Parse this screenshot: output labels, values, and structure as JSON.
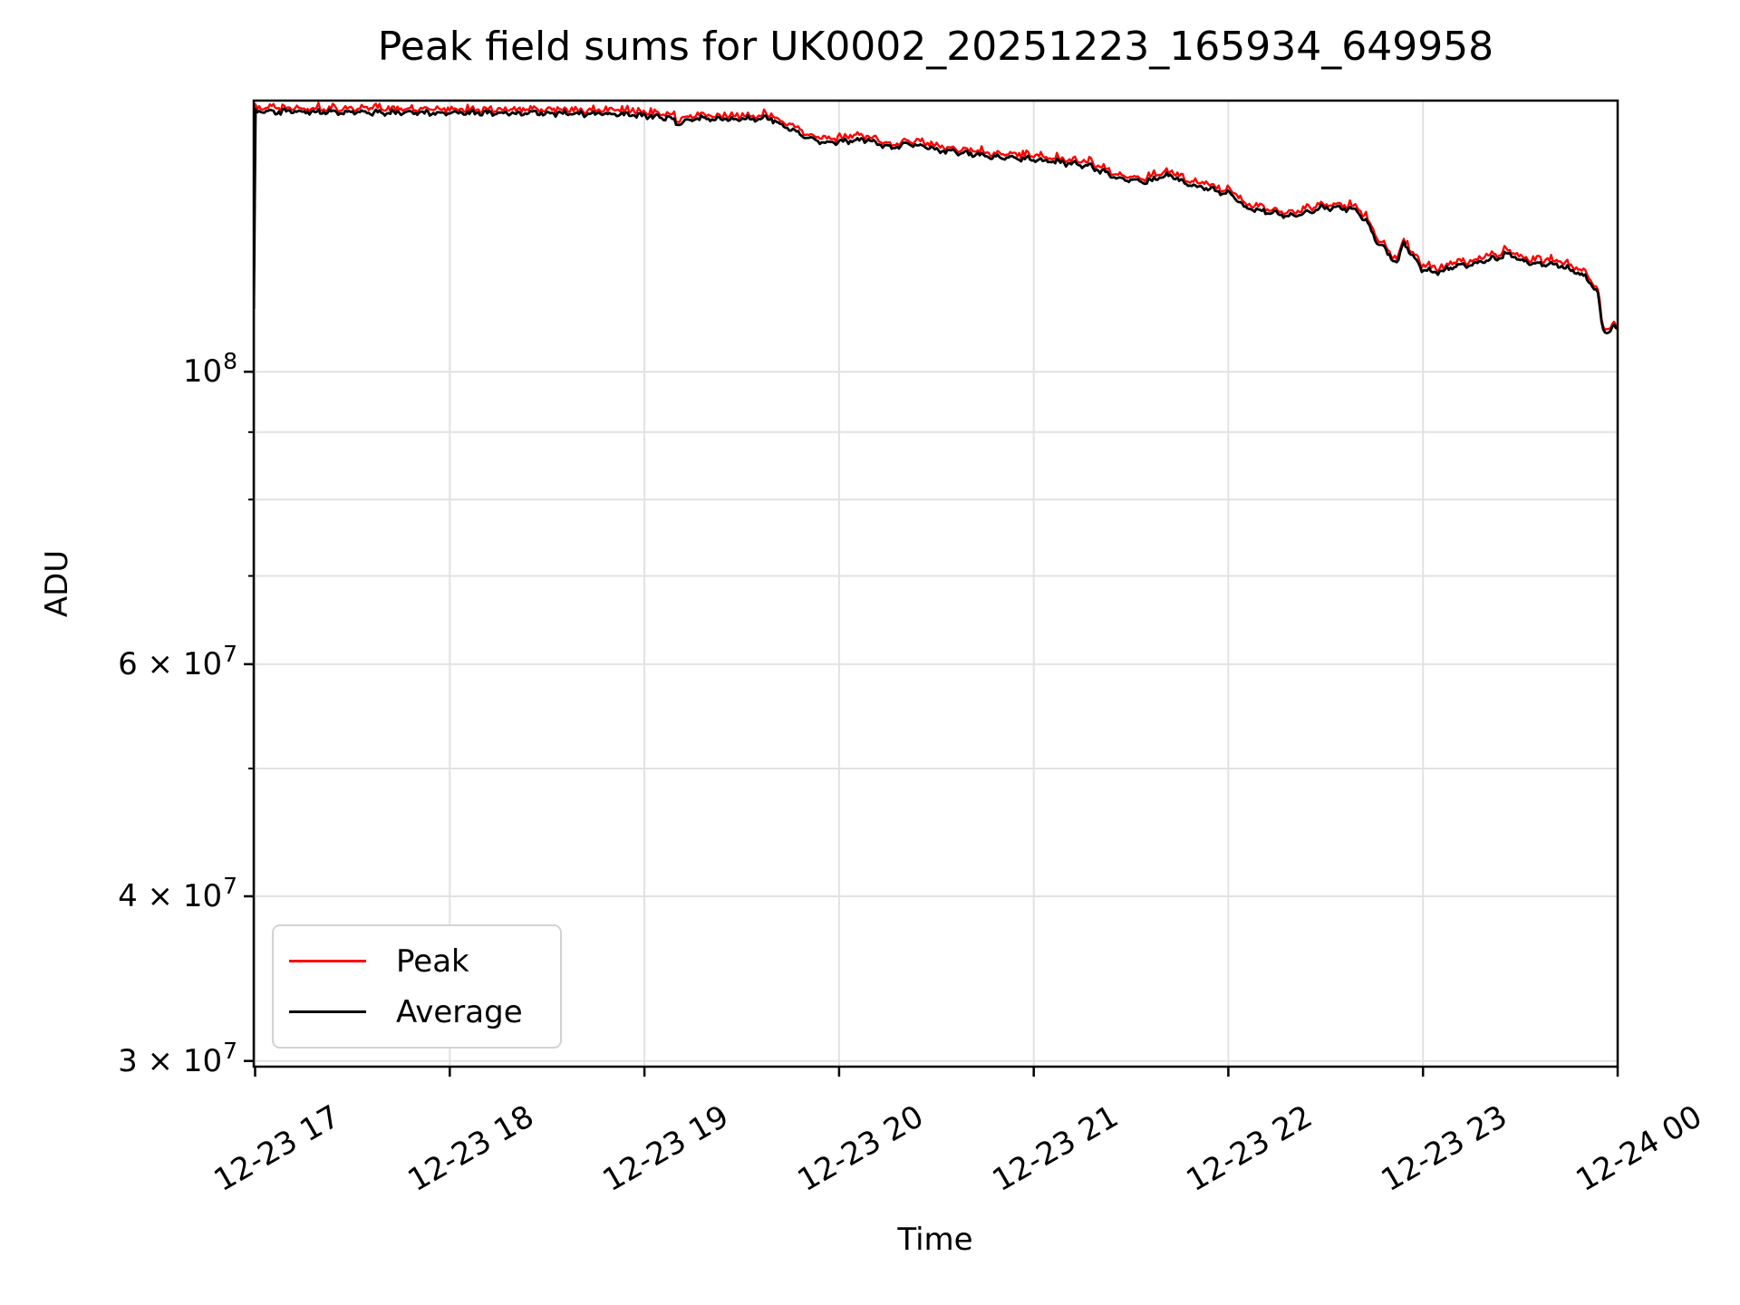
{
  "chart_data": {
    "type": "line",
    "title": "Peak field sums for UK0002_20251223_165934_649958",
    "xlabel": "Time",
    "ylabel": "ADU",
    "yscale": "log",
    "grid": true,
    "legend_position": "lower left",
    "xlim_hours": [
      16.9928,
      24.0
    ],
    "ylim": [
      29700000,
      160600000
    ],
    "x_ticks": [
      {
        "hour": 17,
        "label": "12-23 17"
      },
      {
        "hour": 18,
        "label": "12-23 18"
      },
      {
        "hour": 19,
        "label": "12-23 19"
      },
      {
        "hour": 20,
        "label": "12-23 20"
      },
      {
        "hour": 21,
        "label": "12-23 21"
      },
      {
        "hour": 22,
        "label": "12-23 22"
      },
      {
        "hour": 23,
        "label": "12-23 23"
      },
      {
        "hour": 24,
        "label": "12-24 00"
      }
    ],
    "y_major_ticks": [
      {
        "value": 100000000,
        "prefix": "",
        "base": "10",
        "exp": "8"
      },
      {
        "value": 60000000,
        "prefix": "6 × ",
        "base": "10",
        "exp": "7"
      },
      {
        "value": 40000000,
        "prefix": "4 × ",
        "base": "10",
        "exp": "7"
      },
      {
        "value": 30000000,
        "prefix": "3 × ",
        "base": "10",
        "exp": "7"
      }
    ],
    "y_minor_gridlines": [
      90000000,
      80000000,
      70000000,
      50000000
    ],
    "series": [
      {
        "name": "Peak",
        "color": "#ff0000"
      },
      {
        "name": "Average",
        "color": "#000000"
      }
    ],
    "average_anchors_hours": [
      16.9928,
      17.0,
      17.5,
      18.0,
      18.5,
      18.95,
      19.13,
      19.18,
      19.25,
      19.45,
      19.65,
      19.79,
      19.91,
      20.0,
      20.13,
      20.27,
      20.35,
      20.53,
      20.77,
      21.0,
      21.28,
      21.43,
      21.58,
      21.7,
      21.79,
      21.93,
      22.01,
      22.06,
      22.08,
      22.33,
      22.49,
      22.65,
      22.72,
      22.77,
      22.82,
      22.87,
      22.9,
      22.93,
      23.0,
      23.07,
      23.16,
      23.28,
      23.4,
      23.43,
      23.51,
      23.6,
      23.7,
      23.81,
      23.87,
      23.9,
      23.92,
      23.95,
      23.98,
      24.0
    ],
    "average_anchors_adu": [
      111600000,
      157500000,
      157300000,
      157200000,
      157100000,
      156700000,
      155800000,
      154000000,
      155600000,
      155500000,
      155600000,
      151600000,
      149200000,
      149600000,
      150000000,
      147700000,
      149000000,
      147200000,
      145700000,
      145000000,
      143400000,
      140200000,
      139300000,
      141100000,
      138700000,
      137300000,
      136500000,
      134500000,
      133200000,
      131200000,
      133200000,
      132900000,
      129300000,
      125100000,
      123100000,
      120800000,
      125700000,
      123100000,
      119500000,
      118900000,
      120200000,
      121000000,
      122100000,
      123100000,
      121400000,
      120800000,
      120400000,
      118700000,
      116500000,
      114800000,
      107700000,
      107000000,
      108100000,
      107500000
    ],
    "noise": {
      "seed": 3,
      "n_samples": 760,
      "avg_amplitude": 0.005,
      "peak_offset": 0.005,
      "peak_spike": 0.0075
    },
    "colors": {
      "grid": "#e2e2e2",
      "spine": "#000000",
      "legend_border": "#d2d2d2"
    }
  }
}
